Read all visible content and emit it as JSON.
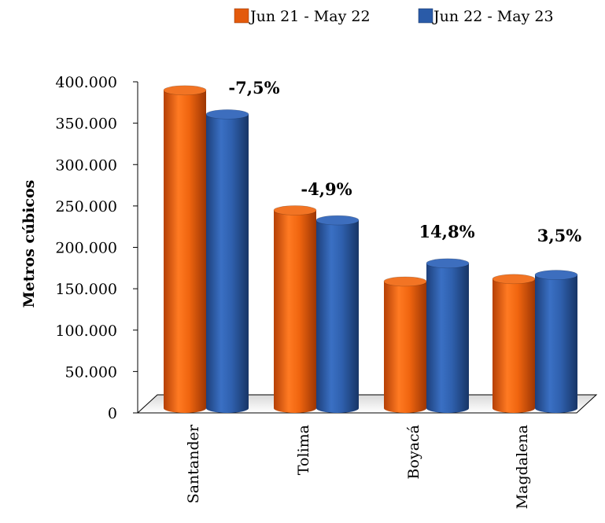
{
  "chart_data": {
    "type": "bar",
    "title": "",
    "xlabel": "",
    "ylabel": "Metros cúbicos",
    "ylim": [
      0,
      400000
    ],
    "yticks": [
      "0",
      "50.000",
      "100.000",
      "150.000",
      "200.000",
      "250.000",
      "300.000",
      "350.000",
      "400.000"
    ],
    "categories": [
      "Santander",
      "Tolima",
      "Boyacá",
      "Magdalena"
    ],
    "series": [
      {
        "name": "Jun 21 - May 22",
        "color": "#E35A0C",
        "values": [
          384000,
          239000,
          153000,
          156000
        ]
      },
      {
        "name": "Jun 22 - May 23",
        "color": "#2A5BA8",
        "values": [
          355000,
          227000,
          175000,
          161000
        ]
      }
    ],
    "annotations": [
      "-7,5%",
      "-4,9%",
      "14,8%",
      "3,5%"
    ],
    "legend_position": "top-right",
    "grid": false
  }
}
